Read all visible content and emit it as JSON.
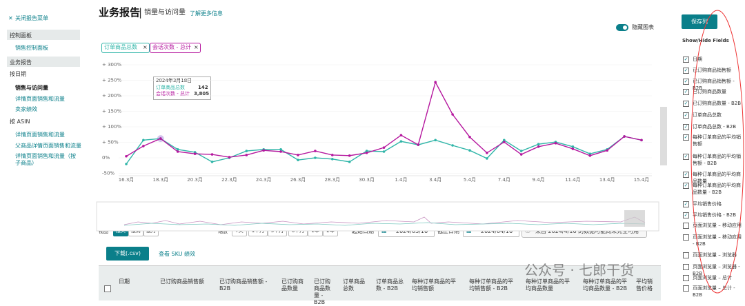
{
  "sidebar": {
    "close": "关闭报告菜单",
    "items": [
      {
        "text": "控制面板",
        "kind": "section"
      },
      {
        "text": "销售控制面板",
        "kind": "link"
      },
      {
        "text": "业务报告",
        "kind": "section"
      },
      {
        "text": "按日期",
        "kind": "group"
      },
      {
        "text": "销售与访问量",
        "kind": "active"
      },
      {
        "text": "详情页面销售和流量",
        "kind": "link"
      },
      {
        "text": "卖家绩效",
        "kind": "link"
      },
      {
        "text": "按 ASIN",
        "kind": "group"
      },
      {
        "text": "详情页面销售和流量",
        "kind": "link"
      },
      {
        "text": "父商品详情页面销售和流量",
        "kind": "link"
      },
      {
        "text": "详情页面销售和流量（按子商品）",
        "kind": "link"
      }
    ]
  },
  "header": {
    "title": "业务报告",
    "subtitle": "销量与访问量",
    "link": "了解更多信息",
    "toggle": "隐藏图表"
  },
  "chart_data": {
    "type": "line",
    "categories": [
      "16.3月",
      null,
      "18.3月",
      null,
      "20.3月",
      null,
      "22.3月",
      null,
      "24.3月",
      null,
      "26.3月",
      null,
      "28.3月",
      null,
      "30.3月",
      null,
      "1.4月",
      null,
      "3.4月",
      null,
      "5.4月",
      null,
      "7.4月",
      null,
      "9.4月",
      null,
      "11.4月",
      null,
      "13.4月",
      null,
      "15.4月"
    ],
    "series": [
      {
        "name": "订单商品总数",
        "color": "#2fb5a8",
        "values": [
          -20,
          57,
          62,
          27,
          18,
          -13,
          0,
          22,
          27,
          27,
          -7,
          0,
          -4,
          -13,
          22,
          20,
          53,
          42,
          57,
          40,
          24,
          -2,
          57,
          22,
          44,
          51,
          36,
          13,
          27,
          69,
          57
        ]
      },
      {
        "name": "会话次数 - 总计",
        "color": "#b5179e",
        "values": [
          5,
          38,
          62,
          20,
          13,
          11,
          2,
          9,
          24,
          20,
          9,
          22,
          9,
          7,
          16,
          33,
          73,
          42,
          244,
          140,
          67,
          16,
          51,
          11,
          36,
          47,
          29,
          7,
          24,
          69,
          57
        ]
      }
    ],
    "ylim": [
      -50,
      300
    ],
    "yticks": [
      {
        "value": -50,
        "label": "-50%"
      },
      {
        "value": 0,
        "label": "0%"
      },
      {
        "value": 50,
        "label": "+ 50%"
      },
      {
        "value": 100,
        "label": "+ 100%"
      },
      {
        "value": 150,
        "label": "+ 150%"
      },
      {
        "value": 200,
        "label": "+ 200%"
      },
      {
        "value": 250,
        "label": "+ 250%"
      },
      {
        "value": 300,
        "label": "+ 300%"
      }
    ],
    "grid": true,
    "tooltip": {
      "date": "2024年3月18日",
      "rows": [
        {
          "name": "订单商品总数",
          "value": "142"
        },
        {
          "name": "会话次数 - 总计",
          "value": "3,805"
        }
      ]
    }
  },
  "controls": {
    "view_label": "视图",
    "views": [
      {
        "text": "按天",
        "selected": true
      },
      {
        "text": "按周",
        "selected": false
      },
      {
        "text": "按月",
        "selected": false
      }
    ],
    "zoom_label": "缩放",
    "zooms": [
      "7天",
      "1个月",
      "3个月",
      "6个月",
      "1年",
      "2年"
    ],
    "start_label": "起始日期",
    "start": "2024/03/16",
    "end_label": "截止日期",
    "end": "2024/04/16",
    "notice": "来自 2024/4/16 的数据可能尚未完全可用"
  },
  "table": {
    "download": "下载(.csv)",
    "sku_link": "查看 SKU 绩效",
    "columns": [
      "日期",
      "已订购商品销售额",
      "已订购商品销售额 - B2B",
      "已订购商品数量",
      "已订购商品数量 - B2B",
      "订单商品总数",
      "订单商品总数 - B2B",
      "每种订单商品的平均销售额",
      "每种订单商品的平均销售额 - B2B",
      "每种订单商品的平均商品数量",
      "每种订单商品的平均商品数量 - B2B",
      "平均销售价格"
    ]
  },
  "fields": {
    "save": "保存列",
    "heading": "Show/Hide Fields",
    "items": [
      {
        "label": "日期",
        "checked": true
      },
      {
        "label": "已订购商品销售额",
        "checked": true
      },
      {
        "label": "已订购商品销售额 - B2B",
        "checked": true
      },
      {
        "label": "已订购商品数量",
        "checked": true
      },
      {
        "label": "已订购商品数量 - B2B",
        "checked": true
      },
      {
        "label": "订单商品总数",
        "checked": true
      },
      {
        "label": "订单商品总数 - B2B",
        "checked": true
      },
      {
        "label": "每种订单商品的平均销售额",
        "checked": true
      },
      {
        "label": "每种订单商品的平均销售额 - B2B",
        "checked": true
      },
      {
        "label": "每种订单商品的平均商品数量",
        "checked": true
      },
      {
        "label": "每种订单商品的平均商品数量 - B2B",
        "checked": true
      },
      {
        "label": "平均销售价格",
        "checked": true
      },
      {
        "label": "平均销售价格 - B2B",
        "checked": true
      },
      {
        "label": "页面浏览量 – 移动应用",
        "checked": false
      },
      {
        "label": "页面浏览量 – 移动应用 - B2B",
        "checked": false
      },
      {
        "label": "页面浏览量 – 浏览器",
        "checked": false
      },
      {
        "label": "页面浏览量 – 浏览器 - B2B",
        "checked": false
      },
      {
        "label": "页面浏览量 – 总计",
        "checked": false
      },
      {
        "label": "页面浏览量 – 总计 - B2B",
        "checked": false
      }
    ]
  },
  "watermark": "公众号 · 七郎干货"
}
